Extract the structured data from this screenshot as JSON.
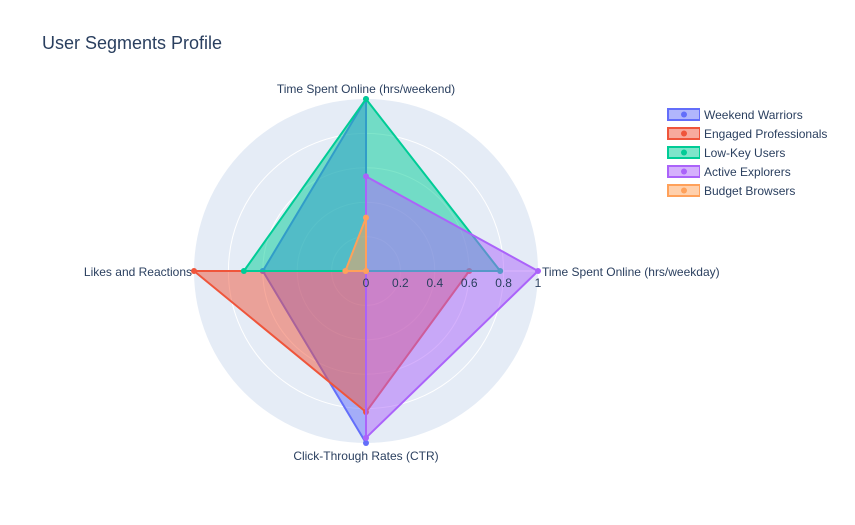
{
  "chart_data": {
    "type": "radar",
    "title": "User Segments Profile",
    "axes": [
      "Time Spent Online (hrs/weekday)",
      "Time Spent Online (hrs/weekend)",
      "Likes and Reactions",
      "Click-Through Rates (CTR)"
    ],
    "radial_range": [
      0,
      1
    ],
    "radial_ticks": [
      "0",
      "0.2",
      "0.4",
      "0.6",
      "0.8",
      "1"
    ],
    "grid": true,
    "legend_position": "top-right",
    "series": [
      {
        "name": "Weekend Warriors",
        "color": "#636efa",
        "values": [
          0.0,
          1.0,
          0.6,
          1.0
        ]
      },
      {
        "name": "Engaged Professionals",
        "color": "#ef553b",
        "values": [
          0.6,
          0.0,
          1.0,
          0.82
        ]
      },
      {
        "name": "Low-Key Users",
        "color": "#00cc96",
        "values": [
          0.78,
          1.0,
          0.71,
          0.0
        ]
      },
      {
        "name": "Active Explorers",
        "color": "#ab63fa",
        "values": [
          1.0,
          0.55,
          0.0,
          0.97
        ]
      },
      {
        "name": "Budget Browsers",
        "color": "#ffa15a",
        "values": [
          0.0,
          0.31,
          0.12,
          0.0
        ]
      }
    ]
  }
}
